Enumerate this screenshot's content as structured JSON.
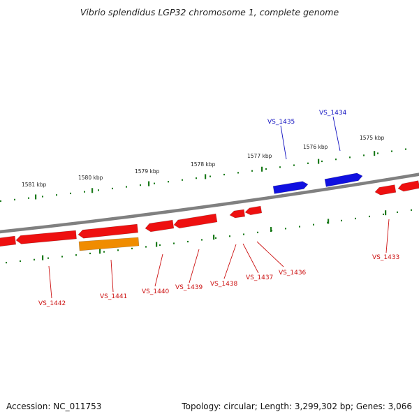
{
  "title": "Vibrio splendidus LGP32 chromosome 1, complete genome",
  "footer": {
    "accession": "Accession: NC_011753",
    "summary": "Topology: circular; Length: 3,299,302 bp; Genes: 3,066"
  },
  "colors": {
    "backbone": "#808080",
    "tick": "#1a7a1a",
    "forward_gene": "#1010e0",
    "reverse_gene": "#ee1010",
    "highlight_gene": "#f08c00",
    "forward_label": "#1010c0",
    "reverse_label": "#cc1010"
  },
  "scale_labels": [
    "1581 kbp",
    "1580 kbp",
    "1579 kbp",
    "1578 kbp",
    "1577 kbp",
    "1576 kbp",
    "1575 kbp"
  ],
  "genes": [
    {
      "label": "VS_1435",
      "strand": "forward"
    },
    {
      "label": "VS_1434",
      "strand": "forward"
    },
    {
      "label": "VS_1433",
      "strand": "reverse"
    },
    {
      "label": "VS_1436",
      "strand": "reverse"
    },
    {
      "label": "VS_1437",
      "strand": "reverse"
    },
    {
      "label": "VS_1438",
      "strand": "reverse"
    },
    {
      "label": "VS_1439",
      "strand": "reverse"
    },
    {
      "label": "VS_1440",
      "strand": "reverse"
    },
    {
      "label": "VS_1441",
      "strand": "reverse",
      "highlight": true
    },
    {
      "label": "VS_1442",
      "strand": "reverse"
    }
  ]
}
